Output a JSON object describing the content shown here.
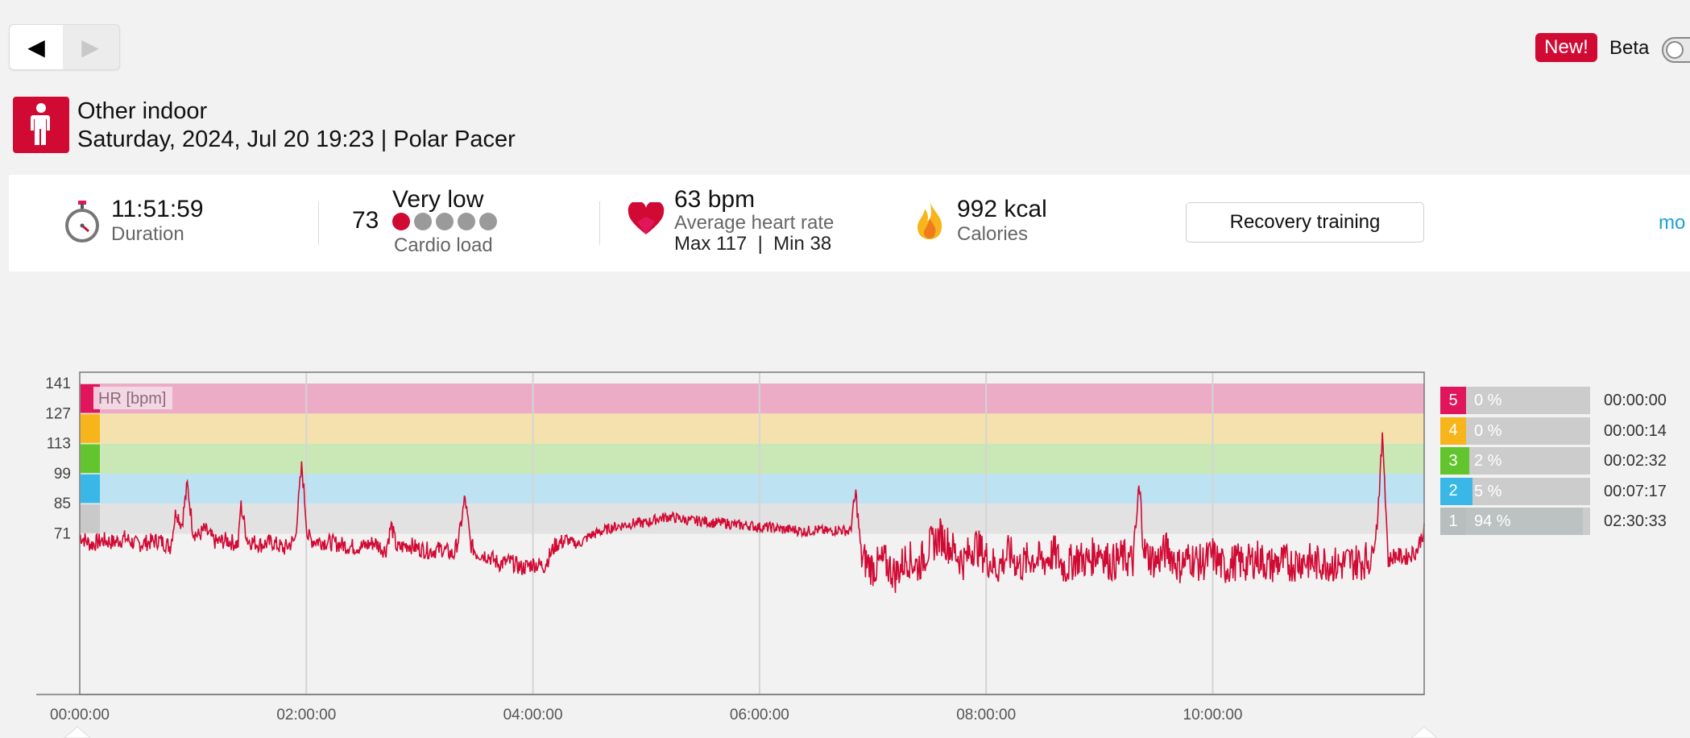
{
  "nav": {
    "back_glyph": "◀",
    "forward_glyph": "▶"
  },
  "header": {
    "new_badge": "New!",
    "beta_label": "Beta"
  },
  "activity": {
    "icon": "person-standing-icon",
    "name": "Other indoor",
    "datetime": "Saturday, 2024, Jul 20 19:23 | Polar Pacer"
  },
  "summary": {
    "duration": {
      "value": "11:51:59",
      "label": "Duration",
      "icon": "stopwatch-icon"
    },
    "cardio_load": {
      "value": "73",
      "level": "Very low",
      "label": "Cardio load",
      "dots_filled": 1,
      "dots_total": 5
    },
    "heart_rate": {
      "value": "63 bpm",
      "label": "Average heart rate",
      "max_min": "Max 117  |  Min 38",
      "icon": "heart-icon"
    },
    "calories": {
      "value": "992 kcal",
      "label": "Calories",
      "icon": "flame-icon"
    },
    "training_benefit": "Recovery training",
    "more_link": "mo"
  },
  "chart_data": {
    "type": "line",
    "series_label": "HR [bpm]",
    "y_ticks": [
      141,
      127,
      113,
      99,
      85,
      71
    ],
    "ylim": [
      30,
      141
    ],
    "x_ticks": [
      "00:00:00",
      "02:00:00",
      "04:00:00",
      "06:00:00",
      "08:00:00",
      "10:00:00"
    ],
    "x_range_hours": [
      0,
      11.8664
    ],
    "zone_bands": [
      {
        "zone": 5,
        "from": 127,
        "to": 141,
        "color": "#ecacc6",
        "marker": "#e0155b"
      },
      {
        "zone": 4,
        "from": 113,
        "to": 127,
        "color": "#f4e1ad",
        "marker": "#f7b51b"
      },
      {
        "zone": 3,
        "from": 99,
        "to": 113,
        "color": "#c9e8b6",
        "marker": "#62c52e"
      },
      {
        "zone": 2,
        "from": 85,
        "to": 99,
        "color": "#bde2f1",
        "marker": "#39b8e8"
      },
      {
        "zone": 1,
        "from": 71,
        "to": 85,
        "color": "#e2e2e2",
        "marker": "#c9c9c9"
      }
    ],
    "line_color": "#d10a34",
    "hr_points": [
      [
        0.0,
        70
      ],
      [
        0.1,
        66
      ],
      [
        0.2,
        68
      ],
      [
        0.3,
        67
      ],
      [
        0.4,
        69
      ],
      [
        0.5,
        66
      ],
      [
        0.6,
        67
      ],
      [
        0.7,
        68
      ],
      [
        0.8,
        65
      ],
      [
        0.85,
        82
      ],
      [
        0.9,
        75
      ],
      [
        0.95,
        94
      ],
      [
        1.0,
        72
      ],
      [
        1.05,
        70
      ],
      [
        1.1,
        73
      ],
      [
        1.2,
        67
      ],
      [
        1.3,
        68
      ],
      [
        1.4,
        66
      ],
      [
        1.42,
        85
      ],
      [
        1.48,
        68
      ],
      [
        1.6,
        66
      ],
      [
        1.7,
        67
      ],
      [
        1.8,
        64
      ],
      [
        1.9,
        68
      ],
      [
        1.96,
        103
      ],
      [
        2.01,
        70
      ],
      [
        2.05,
        68
      ],
      [
        2.2,
        67
      ],
      [
        2.3,
        66
      ],
      [
        2.4,
        65
      ],
      [
        2.5,
        65
      ],
      [
        2.6,
        67
      ],
      [
        2.7,
        63
      ],
      [
        2.75,
        75
      ],
      [
        2.8,
        64
      ],
      [
        2.9,
        66
      ],
      [
        3.0,
        64
      ],
      [
        3.1,
        63
      ],
      [
        3.2,
        64
      ],
      [
        3.3,
        61
      ],
      [
        3.35,
        70
      ],
      [
        3.4,
        88
      ],
      [
        3.45,
        66
      ],
      [
        3.5,
        62
      ],
      [
        3.6,
        61
      ],
      [
        3.7,
        57
      ],
      [
        3.8,
        58
      ],
      [
        3.9,
        55
      ],
      [
        4.0,
        57
      ],
      [
        4.1,
        56
      ],
      [
        4.2,
        66
      ],
      [
        4.3,
        68
      ],
      [
        4.4,
        66
      ],
      [
        4.5,
        70
      ],
      [
        4.6,
        72
      ],
      [
        4.7,
        74
      ],
      [
        4.8,
        75
      ],
      [
        4.9,
        76
      ],
      [
        5.0,
        76
      ],
      [
        5.1,
        78
      ],
      [
        5.2,
        79
      ],
      [
        5.3,
        78
      ],
      [
        5.4,
        77
      ],
      [
        5.5,
        77
      ],
      [
        5.6,
        76
      ],
      [
        5.7,
        76
      ],
      [
        5.8,
        75
      ],
      [
        5.9,
        75
      ],
      [
        6.0,
        74
      ],
      [
        6.1,
        74
      ],
      [
        6.2,
        73
      ],
      [
        6.3,
        73
      ],
      [
        6.4,
        72
      ],
      [
        6.5,
        73
      ],
      [
        6.6,
        72
      ],
      [
        6.7,
        73
      ],
      [
        6.8,
        72
      ],
      [
        6.85,
        90
      ],
      [
        6.9,
        60
      ],
      [
        7.0,
        55
      ],
      [
        7.1,
        58
      ],
      [
        7.2,
        52
      ],
      [
        7.3,
        60
      ],
      [
        7.4,
        56
      ],
      [
        7.5,
        65
      ],
      [
        7.6,
        70
      ],
      [
        7.7,
        64
      ],
      [
        7.8,
        58
      ],
      [
        7.9,
        66
      ],
      [
        8.0,
        60
      ],
      [
        8.1,
        55
      ],
      [
        8.2,
        62
      ],
      [
        8.3,
        56
      ],
      [
        8.4,
        60
      ],
      [
        8.5,
        58
      ],
      [
        8.6,
        62
      ],
      [
        8.7,
        55
      ],
      [
        8.8,
        60
      ],
      [
        8.9,
        58
      ],
      [
        9.0,
        64
      ],
      [
        9.1,
        57
      ],
      [
        9.2,
        60
      ],
      [
        9.3,
        58
      ],
      [
        9.35,
        92
      ],
      [
        9.4,
        62
      ],
      [
        9.5,
        58
      ],
      [
        9.6,
        64
      ],
      [
        9.7,
        56
      ],
      [
        9.8,
        60
      ],
      [
        9.9,
        57
      ],
      [
        10.0,
        61
      ],
      [
        10.1,
        55
      ],
      [
        10.2,
        58
      ],
      [
        10.3,
        57
      ],
      [
        10.4,
        60
      ],
      [
        10.5,
        56
      ],
      [
        10.6,
        58
      ],
      [
        10.7,
        57
      ],
      [
        10.8,
        59
      ],
      [
        10.9,
        57
      ],
      [
        11.0,
        58
      ],
      [
        11.1,
        56
      ],
      [
        11.2,
        58
      ],
      [
        11.3,
        58
      ],
      [
        11.4,
        60
      ],
      [
        11.45,
        75
      ],
      [
        11.5,
        117
      ],
      [
        11.55,
        58
      ],
      [
        11.6,
        61
      ],
      [
        11.7,
        60
      ],
      [
        11.8,
        63
      ],
      [
        11.86,
        72
      ]
    ]
  },
  "zones": [
    {
      "zone": "5",
      "pct": "0 %",
      "share": 0.0,
      "time": "00:00:00",
      "color": "#e0155b"
    },
    {
      "zone": "4",
      "pct": "0 %",
      "share": 0.0,
      "time": "00:00:14",
      "color": "#f7b51b"
    },
    {
      "zone": "3",
      "pct": "2 %",
      "share": 0.02,
      "time": "00:02:32",
      "color": "#62c52e"
    },
    {
      "zone": "2",
      "pct": "5 %",
      "share": 0.05,
      "time": "00:07:17",
      "color": "#39b8e8"
    },
    {
      "zone": "1",
      "pct": "94 %",
      "share": 0.94,
      "time": "02:30:33",
      "color": "#b8bdbd"
    }
  ]
}
